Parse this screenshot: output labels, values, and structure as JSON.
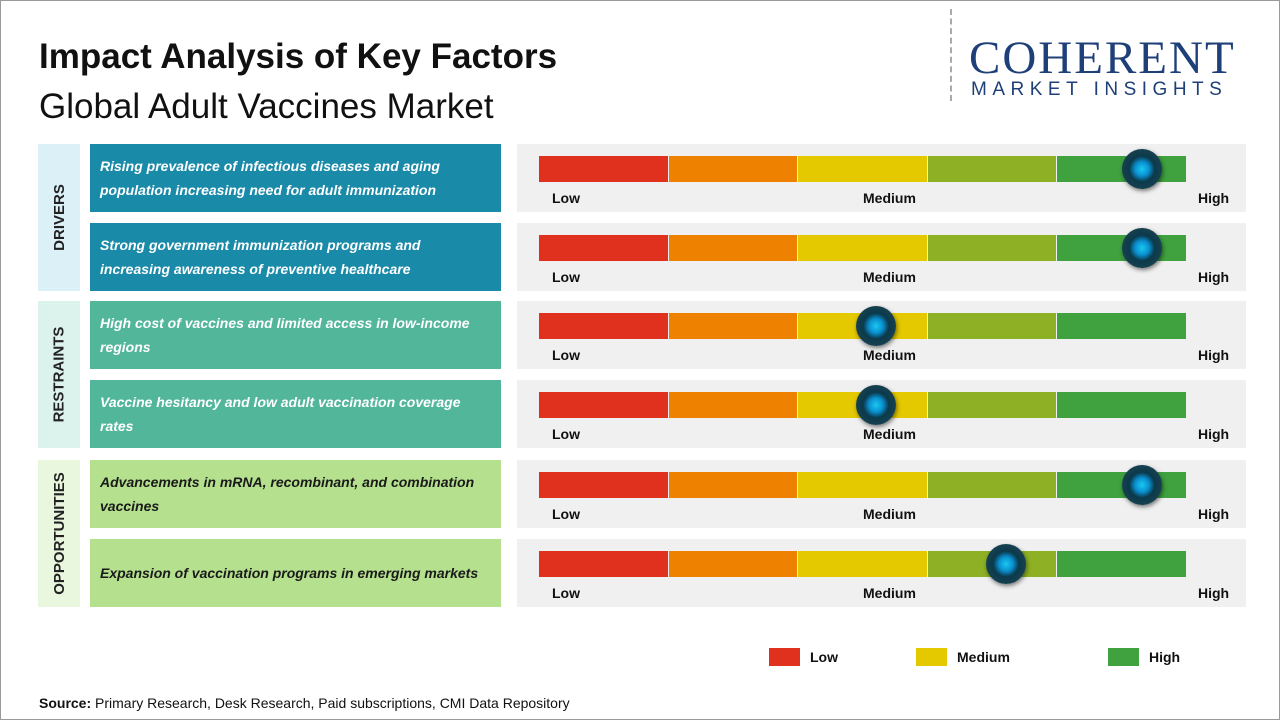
{
  "header": {
    "title": "Impact Analysis of Key Factors",
    "subtitle": "Global Adult Vaccines Market"
  },
  "logo": {
    "name": "COHERENT",
    "tagline": "MARKET INSIGHTS"
  },
  "scale": {
    "labels": [
      "Low",
      "Medium",
      "High"
    ],
    "colors": [
      "#e0301e",
      "#ee8200",
      "#e4c800",
      "#8eb024",
      "#3fa23f"
    ],
    "xlim": [
      0,
      100
    ]
  },
  "groups": [
    {
      "label": "DRIVERS",
      "color": "#1a8aa9",
      "band": "#dcf0f8",
      "text_color": "#ffffff",
      "factors": [
        {
          "text": "Rising prevalence of infectious diseases and aging population increasing need for adult immunization",
          "impact": 93
        },
        {
          "text": "Strong government immunization programs and increasing awareness of preventive healthcare",
          "impact": 93
        }
      ]
    },
    {
      "label": "RESTRAINTS",
      "color": "#52b69a",
      "band": "#dcf2ec",
      "text_color": "#ffffff",
      "factors": [
        {
          "text": "High cost of vaccines and limited access in low-income regions",
          "impact": 52
        },
        {
          "text": "Vaccine hesitancy and low adult vaccination coverage rates",
          "impact": 52
        }
      ]
    },
    {
      "label": "OPPORTUNITIES",
      "color": "#b5e08e",
      "band": "#e9f7de",
      "text_color": "#1a1a1a",
      "factors": [
        {
          "text": "Advancements in mRNA, recombinant, and combination vaccines",
          "impact": 93
        },
        {
          "text": "Expansion of vaccination programs in emerging markets",
          "impact": 72
        }
      ]
    }
  ],
  "legend": [
    {
      "label": "Low",
      "color": "#e0301e"
    },
    {
      "label": "Medium",
      "color": "#e4c800"
    },
    {
      "label": "High",
      "color": "#3fa23f"
    }
  ],
  "source": {
    "label": "Source:",
    "text": "Primary Research, Desk Research, Paid subscriptions, CMI Data Repository"
  }
}
